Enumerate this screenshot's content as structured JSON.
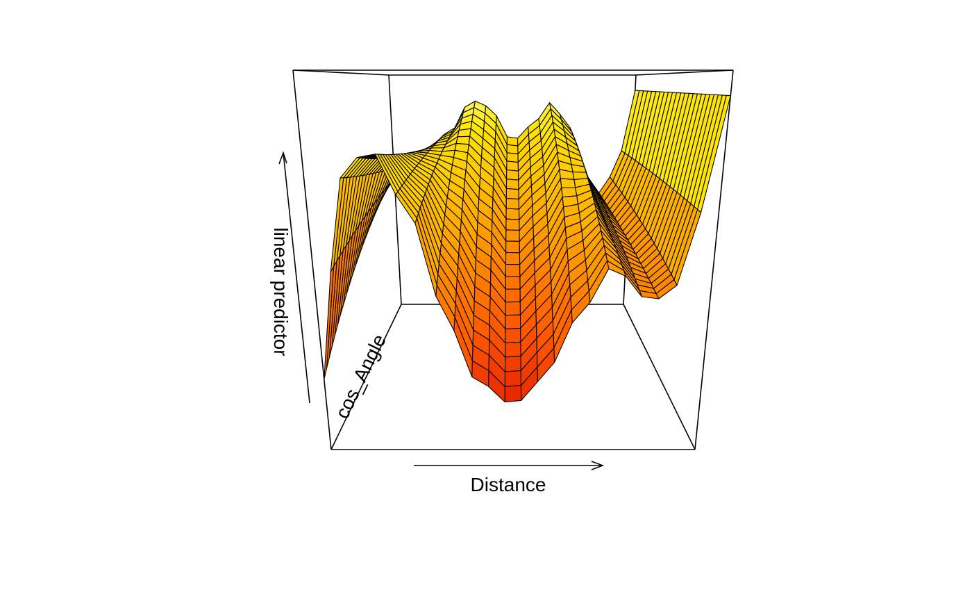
{
  "chart_data": {
    "type": "surface",
    "title": "",
    "xlabel": "Distance",
    "ylabel": "cos_Angle",
    "zlabel": "linear predictor",
    "grid": false,
    "legend": "none",
    "colors": [
      "#e31a00",
      "#ff5a00",
      "#ff9000",
      "#ffc000",
      "#ffe600",
      "#ffff99"
    ],
    "note_colors": "Fill colour runs from red (low) to pale yellow (high) linear predictor",
    "view": {
      "theta": 0,
      "phi": 15
    },
    "xlim": [
      0,
      1
    ],
    "ylim": [
      0,
      1
    ],
    "zlim": [
      0,
      1
    ],
    "x_values": [
      0.0,
      0.0435,
      0.087,
      0.1304,
      0.1739,
      0.2174,
      0.2609,
      0.3043,
      0.3478,
      0.3913,
      0.4348,
      0.4783,
      0.5217,
      0.5652,
      0.6087,
      0.6522,
      0.6957,
      0.7391,
      0.7826,
      0.8261,
      0.8696,
      0.913,
      0.9565,
      1.0
    ],
    "y_values": [
      0.0,
      0.0435,
      0.087,
      0.1304,
      0.1739,
      0.2174,
      0.2609,
      0.3043,
      0.3478,
      0.3913,
      0.4348,
      0.4783,
      0.5217,
      0.5652,
      0.6087,
      0.6522,
      0.6957,
      0.7391,
      0.7826,
      0.8261,
      0.8696,
      0.913,
      0.9565,
      1.0
    ],
    "z_front_profile": [
      [
        0.0,
        0.1
      ],
      [
        0.05,
        0.45
      ],
      [
        0.1,
        0.78
      ],
      [
        0.17,
        0.8
      ],
      [
        0.25,
        0.6
      ],
      [
        0.33,
        0.28
      ],
      [
        0.4,
        0.1
      ],
      [
        0.5,
        0.02
      ],
      [
        0.58,
        0.1
      ],
      [
        0.66,
        0.28
      ],
      [
        0.75,
        0.45
      ],
      [
        0.84,
        0.35
      ],
      [
        0.9,
        0.35
      ],
      [
        0.95,
        0.6
      ],
      [
        1.0,
        0.98
      ]
    ],
    "z_back_profile": [
      [
        0.0,
        0.55
      ],
      [
        0.08,
        0.62
      ],
      [
        0.15,
        0.68
      ],
      [
        0.25,
        0.78
      ],
      [
        0.33,
        0.93
      ],
      [
        0.4,
        0.9
      ],
      [
        0.5,
        0.72
      ],
      [
        0.58,
        0.8
      ],
      [
        0.66,
        0.92
      ],
      [
        0.73,
        0.8
      ],
      [
        0.8,
        0.55
      ],
      [
        0.88,
        0.45
      ],
      [
        0.94,
        0.6
      ],
      [
        1.0,
        0.98
      ]
    ]
  }
}
